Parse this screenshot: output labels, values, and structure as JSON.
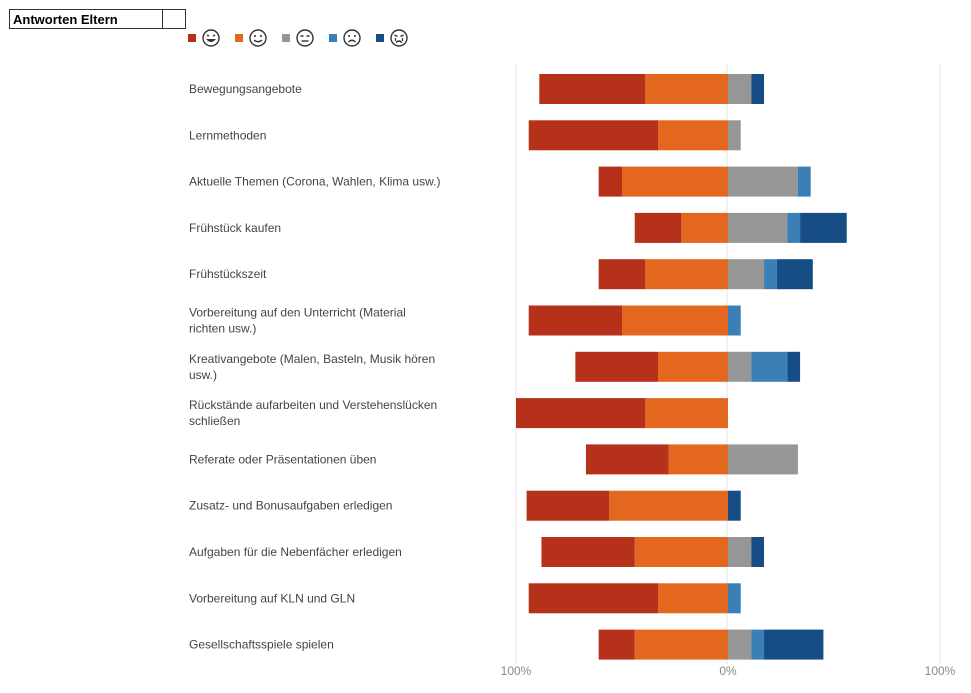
{
  "header": {
    "title": "Antworten Eltern"
  },
  "legend": [
    {
      "name": "grinning-face-icon",
      "color": "#b5311a"
    },
    {
      "name": "smiling-face-icon",
      "color": "#e3671f"
    },
    {
      "name": "neutral-face-icon",
      "color": "#969696"
    },
    {
      "name": "frowning-face-icon",
      "color": "#3a7fb5"
    },
    {
      "name": "crying-face-icon",
      "color": "#174d85"
    }
  ],
  "chart_data": {
    "type": "bar",
    "orientation": "horizontal-diverging-stacked",
    "xlim": [
      -100,
      100
    ],
    "x_tick_labels": [
      "100%",
      "0%",
      "100%"
    ],
    "grid": true,
    "legend_position": "top-left",
    "categories": [
      "Bewegungsangebote",
      "Lernmethoden",
      "Aktuelle Themen (Corona, Wahlen, Klima usw.)",
      "Frühstück kaufen",
      "Frühstückszeit",
      "Vorbereitung auf den Unterricht (Material richten usw.)",
      "Kreativangebote (Malen, Basteln, Musik hören usw.)",
      "Rückstände aufarbeiten und Verstehenslücken schließen",
      "Referate oder Präsentationen üben",
      "Zusatz- und Bonusaufgaben erledigen",
      "Aufgaben für die Nebenfächer erledigen",
      "Vorbereitung auf KLN und GLN",
      "Gesellschaftsspiele spielen"
    ],
    "series": [
      {
        "values": [
          50,
          61,
          11,
          22,
          22,
          44,
          39,
          61,
          39,
          39,
          44,
          61,
          17
        ],
        "color": "#b5311a"
      },
      {
        "values": [
          39,
          33,
          50,
          22,
          39,
          50,
          33,
          39,
          28,
          56,
          44,
          33,
          44
        ],
        "color": "#e3671f"
      },
      {
        "values": [
          11,
          6,
          33,
          28,
          17,
          0,
          11,
          0,
          33,
          0,
          11,
          0,
          11
        ],
        "color": "#969696"
      },
      {
        "values": [
          0,
          0,
          6,
          6,
          6,
          6,
          17,
          0,
          0,
          0,
          0,
          6,
          6
        ],
        "color": "#3a7fb5"
      },
      {
        "values": [
          6,
          0,
          0,
          22,
          17,
          0,
          6,
          0,
          0,
          6,
          6,
          0,
          28
        ],
        "color": "#174d85"
      }
    ]
  }
}
